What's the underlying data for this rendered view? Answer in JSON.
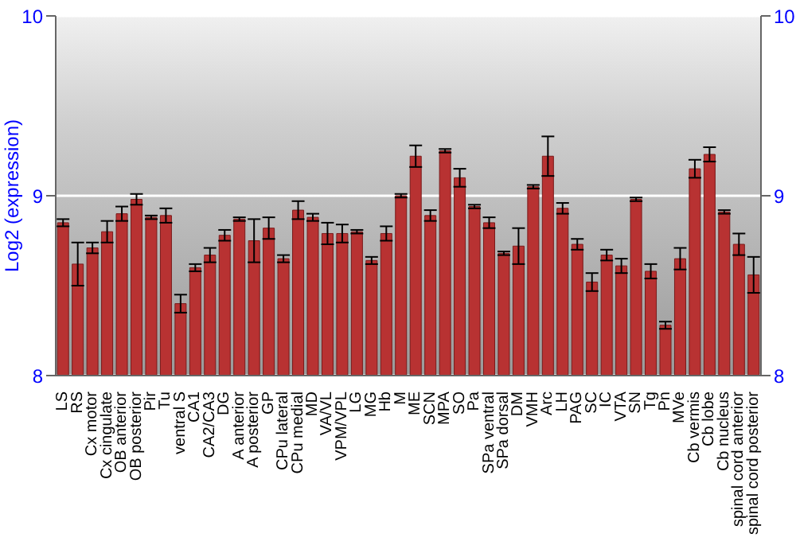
{
  "chart_data": {
    "type": "bar",
    "ylabel": "Log2 (expression)",
    "categories": [
      "LS",
      "RS",
      "Cx motor",
      "Cx cingulate",
      "OB anterior",
      "OB posterior",
      "Pir",
      "Tu",
      "ventral S",
      "CA1",
      "CA2/CA3",
      "DG",
      "A anterior",
      "A posterior",
      "GP",
      "CPu lateral",
      "CPu medial",
      "MD",
      "VA/VL",
      "VPM/VPL",
      "LG",
      "MG",
      "Hb",
      "M",
      "ME",
      "SCN",
      "MPA",
      "SO",
      "Pa",
      "SPa ventral",
      "SPa dorsal",
      "DM",
      "VMH",
      "Arc",
      "LH",
      "PAG",
      "SC",
      "IC",
      "VTA",
      "SN",
      "Tg",
      "Pn",
      "MVe",
      "Cb vermis",
      "Cb lobe",
      "Cb nucleus",
      "spinal cord anterior",
      "spinal cord posterior"
    ],
    "values": [
      8.85,
      8.62,
      8.71,
      8.8,
      8.9,
      8.98,
      8.88,
      8.89,
      8.4,
      8.6,
      8.67,
      8.78,
      8.87,
      8.75,
      8.82,
      8.65,
      8.92,
      8.88,
      8.79,
      8.79,
      8.8,
      8.64,
      8.79,
      9.0,
      9.22,
      8.89,
      9.25,
      9.1,
      8.94,
      8.85,
      8.68,
      8.72,
      9.05,
      9.22,
      8.93,
      8.73,
      8.52,
      8.67,
      8.61,
      8.98,
      8.58,
      8.28,
      8.65,
      9.15,
      9.23,
      8.91,
      8.73,
      8.56
    ],
    "errors": [
      0.02,
      0.12,
      0.03,
      0.06,
      0.04,
      0.03,
      0.01,
      0.04,
      0.05,
      0.02,
      0.04,
      0.03,
      0.01,
      0.12,
      0.06,
      0.02,
      0.05,
      0.02,
      0.06,
      0.05,
      0.01,
      0.02,
      0.04,
      0.01,
      0.06,
      0.03,
      0.01,
      0.05,
      0.01,
      0.03,
      0.01,
      0.1,
      0.01,
      0.11,
      0.03,
      0.03,
      0.05,
      0.03,
      0.04,
      0.01,
      0.04,
      0.02,
      0.06,
      0.05,
      0.04,
      0.01,
      0.06,
      0.1
    ],
    "color": "#b83232",
    "ylim": [
      8,
      10
    ],
    "yticks": [
      8,
      9,
      10
    ],
    "y2lim": [
      8,
      10
    ],
    "y2ticks": [
      8,
      9,
      10
    ],
    "grid": "y"
  }
}
